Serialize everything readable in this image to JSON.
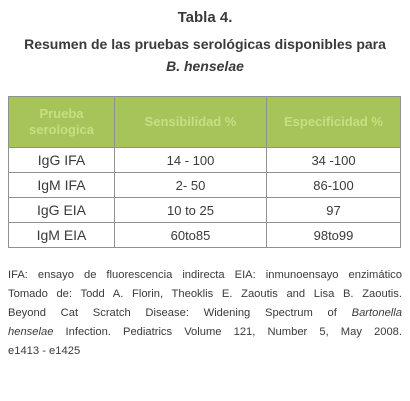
{
  "title": {
    "line1": "Tabla 4.",
    "line2": "Resumen de las pruebas serológicas disponibles para",
    "line3": "B. henselae"
  },
  "table": {
    "headers": [
      "Prueba serologica",
      "Sensibilidad %",
      "Especificidad %"
    ],
    "rows": [
      [
        "IgG IFA",
        "14 - 100",
        "34 -100"
      ],
      [
        "IgM IFA",
        "2- 50",
        "86-100"
      ],
      [
        "IgG EIA",
        "10 to 25",
        "97"
      ],
      [
        "IgM EIA",
        "60to85",
        "98to99"
      ]
    ]
  },
  "footnote": {
    "l1": "IFA: ensayo de fluorescencia indirecta EIA: inmunoensayo enzimático",
    "l2": "Tomado de: Todd A. Florin, Theoklis E. Zaoutis and Lisa B. Zaoutis.",
    "l3_a": "Beyond Cat Scratch Disease: Widening Spectrum of ",
    "l3_b": "Bartonella",
    "l4_a": "henselae",
    "l4_b": " Infection. Pediatrics Volume 121, Number 5, May 2008.",
    "l5": "e1413 - e1425"
  },
  "colors": {
    "header_bg": "#a6c45a",
    "header_text": "#c7de85",
    "border": "#8e9190",
    "text": "#3a3a3a"
  }
}
